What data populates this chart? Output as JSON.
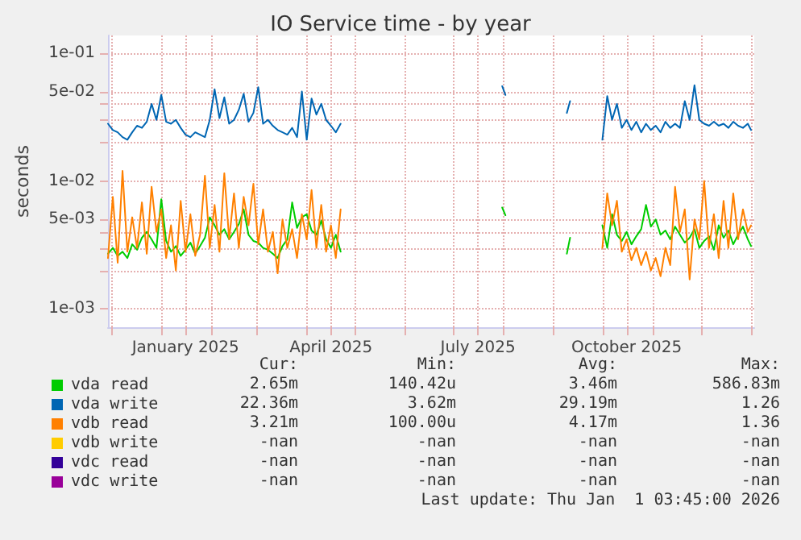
{
  "chart_data": {
    "type": "line",
    "title": "IO Service time - by year",
    "ylabel": "seconds",
    "x": [
      "2024-11-29",
      "2024-12-02",
      "2024-12-05",
      "2024-12-08",
      "2024-12-11",
      "2024-12-14",
      "2024-12-17",
      "2024-12-20",
      "2024-12-23",
      "2024-12-26",
      "2024-12-29",
      "2025-01-01",
      "2025-01-04",
      "2025-01-07",
      "2025-01-10",
      "2025-01-13",
      "2025-01-16",
      "2025-01-19",
      "2025-01-22",
      "2025-01-25",
      "2025-01-28",
      "2025-01-31",
      "2025-02-03",
      "2025-02-06",
      "2025-02-09",
      "2025-02-12",
      "2025-02-15",
      "2025-02-18",
      "2025-02-21",
      "2025-02-24",
      "2025-02-27",
      "2025-03-02",
      "2025-03-05",
      "2025-03-08",
      "2025-03-11",
      "2025-03-14",
      "2025-03-17",
      "2025-03-20",
      "2025-03-23",
      "2025-03-26",
      "2025-03-29",
      "2025-04-01",
      "2025-04-04",
      "2025-04-07",
      "2025-04-10",
      "2025-04-13",
      "2025-04-16",
      "2025-04-19",
      "2025-04-22",
      "2025-06-01",
      "2025-07-31",
      "2025-08-02",
      "2025-08-20",
      "2025-09-09",
      "2025-09-11",
      "2025-09-20",
      "2025-10-01",
      "2025-10-04",
      "2025-10-07",
      "2025-10-10",
      "2025-10-13",
      "2025-10-16",
      "2025-10-19",
      "2025-10-22",
      "2025-10-25",
      "2025-10-28",
      "2025-10-31",
      "2025-11-03",
      "2025-11-06",
      "2025-11-09",
      "2025-11-12",
      "2025-11-15",
      "2025-11-18",
      "2025-11-21",
      "2025-11-24",
      "2025-11-27",
      "2025-11-30",
      "2025-12-03",
      "2025-12-06",
      "2025-12-09",
      "2025-12-12",
      "2025-12-15",
      "2025-12-18",
      "2025-12-21",
      "2025-12-24",
      "2025-12-27",
      "2025-12-30",
      "2026-01-01"
    ],
    "series": [
      {
        "name": "vda read",
        "color": "#00cc00",
        "values": [
          0.0027,
          0.003,
          0.0026,
          0.0028,
          0.0025,
          0.0032,
          0.0029,
          0.0036,
          0.004,
          0.0035,
          0.003,
          0.0072,
          0.0034,
          0.0028,
          0.0031,
          0.0026,
          0.0029,
          0.0033,
          0.0027,
          0.0031,
          0.0036,
          0.0052,
          0.0045,
          0.0038,
          0.0042,
          0.0035,
          0.004,
          0.0046,
          0.006,
          0.0038,
          0.0034,
          0.0033,
          0.003,
          0.0029,
          0.0027,
          0.0025,
          0.0031,
          0.0035,
          0.0068,
          0.0043,
          0.0052,
          0.0055,
          0.0041,
          0.0038,
          0.0049,
          0.0035,
          0.003,
          0.0038,
          0.0028,
          null,
          0.0062,
          0.0054,
          null,
          0.0027,
          0.0036,
          null,
          0.0045,
          0.003,
          0.0055,
          0.0038,
          0.0034,
          0.004,
          0.0032,
          0.0037,
          0.0042,
          0.0065,
          0.0044,
          0.005,
          0.0038,
          0.0041,
          0.0035,
          0.0044,
          0.0038,
          0.0033,
          0.0036,
          0.0042,
          0.003,
          0.0034,
          0.0037,
          0.0029,
          0.0045,
          0.0036,
          0.0041,
          0.0032,
          0.0038,
          0.0044,
          0.0035,
          0.0031
        ]
      },
      {
        "name": "vda write",
        "color": "#0066b3",
        "values": [
          0.028,
          0.025,
          0.024,
          0.022,
          0.021,
          0.024,
          0.027,
          0.026,
          0.029,
          0.04,
          0.03,
          0.047,
          0.029,
          0.028,
          0.03,
          0.026,
          0.023,
          0.022,
          0.024,
          0.023,
          0.022,
          0.03,
          0.052,
          0.031,
          0.045,
          0.028,
          0.03,
          0.036,
          0.048,
          0.029,
          0.034,
          0.054,
          0.028,
          0.03,
          0.027,
          0.025,
          0.024,
          0.023,
          0.026,
          0.022,
          0.05,
          0.021,
          0.044,
          0.033,
          0.04,
          0.03,
          0.027,
          0.024,
          0.028,
          null,
          0.055,
          0.047,
          null,
          0.034,
          0.042,
          null,
          0.021,
          0.046,
          0.03,
          0.04,
          0.026,
          0.03,
          0.025,
          0.029,
          0.024,
          0.028,
          0.025,
          0.027,
          0.024,
          0.029,
          0.026,
          0.028,
          0.026,
          0.042,
          0.03,
          0.056,
          0.03,
          0.028,
          0.027,
          0.029,
          0.027,
          0.028,
          0.026,
          0.029,
          0.027,
          0.026,
          0.028,
          0.025
        ]
      },
      {
        "name": "vdb read",
        "color": "#ff8000",
        "values": [
          0.0025,
          0.0075,
          0.0023,
          0.012,
          0.0028,
          0.0052,
          0.003,
          0.0068,
          0.0027,
          0.009,
          0.004,
          0.006,
          0.0025,
          0.0045,
          0.002,
          0.007,
          0.0028,
          0.0055,
          0.0026,
          0.0038,
          0.011,
          0.003,
          0.0065,
          0.0028,
          0.0115,
          0.0035,
          0.008,
          0.003,
          0.0075,
          0.0045,
          0.0095,
          0.0032,
          0.006,
          0.0028,
          0.004,
          0.0019,
          0.005,
          0.003,
          0.0042,
          0.0025,
          0.0055,
          0.0035,
          0.0085,
          0.003,
          0.0065,
          0.0028,
          0.0045,
          0.0025,
          0.006,
          null,
          null,
          null,
          null,
          null,
          null,
          null,
          0.003,
          0.008,
          0.0045,
          0.007,
          0.0028,
          0.0035,
          0.0024,
          0.003,
          0.0022,
          0.0028,
          0.002,
          0.0025,
          0.0018,
          0.003,
          0.0022,
          0.009,
          0.004,
          0.006,
          0.0017,
          0.005,
          0.0035,
          0.01,
          0.003,
          0.0055,
          0.0025,
          0.007,
          0.003,
          0.008,
          0.0035,
          0.006,
          0.004,
          0.0045
        ]
      },
      {
        "name": "vdb write",
        "color": "#ffcc00",
        "values": [
          null,
          null,
          null,
          null,
          null,
          null,
          null,
          null,
          null,
          null,
          null,
          null,
          null,
          null,
          null,
          null,
          null,
          null,
          null,
          null,
          null,
          null,
          null,
          null,
          null,
          null,
          null,
          null,
          null,
          null,
          null,
          null,
          null,
          null,
          null,
          null,
          null,
          null,
          null,
          null,
          null,
          null,
          null,
          null,
          null,
          null,
          null,
          null,
          null,
          null,
          null,
          null,
          null,
          null,
          null,
          null,
          null,
          null,
          null,
          null,
          null,
          null,
          null,
          null,
          null,
          null,
          null,
          null,
          null,
          null,
          null,
          null,
          null,
          null,
          null,
          null,
          null,
          null,
          null,
          null,
          null,
          null,
          null,
          null,
          null,
          null,
          null,
          null
        ]
      },
      {
        "name": "vdc read",
        "color": "#330099",
        "values": [
          null,
          null,
          null,
          null,
          null,
          null,
          null,
          null,
          null,
          null,
          null,
          null,
          null,
          null,
          null,
          null,
          null,
          null,
          null,
          null,
          null,
          null,
          null,
          null,
          null,
          null,
          null,
          null,
          null,
          null,
          null,
          null,
          null,
          null,
          null,
          null,
          null,
          null,
          null,
          null,
          null,
          null,
          null,
          null,
          null,
          null,
          null,
          null,
          null,
          null,
          null,
          null,
          null,
          null,
          null,
          null,
          null,
          null,
          null,
          null,
          null,
          null,
          null,
          null,
          null,
          null,
          null,
          null,
          null,
          null,
          null,
          null,
          null,
          null,
          null,
          null,
          null,
          null,
          null,
          null,
          null,
          null,
          null,
          null,
          null,
          null,
          null,
          null
        ]
      },
      {
        "name": "vdc write",
        "color": "#990099",
        "values": [
          null,
          null,
          null,
          null,
          null,
          null,
          null,
          null,
          null,
          null,
          null,
          null,
          null,
          null,
          null,
          null,
          null,
          null,
          null,
          null,
          null,
          null,
          null,
          null,
          null,
          null,
          null,
          null,
          null,
          null,
          null,
          null,
          null,
          null,
          null,
          null,
          null,
          null,
          null,
          null,
          null,
          null,
          null,
          null,
          null,
          null,
          null,
          null,
          null,
          null,
          null,
          null,
          null,
          null,
          null,
          null,
          null,
          null,
          null,
          null,
          null,
          null,
          null,
          null,
          null,
          null,
          null,
          null,
          null,
          null,
          null,
          null,
          null,
          null,
          null,
          null,
          null,
          null,
          null,
          null,
          null,
          null,
          null,
          null,
          null,
          null,
          null,
          null
        ]
      }
    ],
    "xlim": [
      "2024-11-29",
      "2026-01-03"
    ],
    "xticks": [
      {
        "value": "2024-12-01",
        "label": null
      },
      {
        "value": "2025-01-01",
        "label": null
      },
      {
        "value": "2025-01-16",
        "label": "January 2025"
      },
      {
        "value": "2025-02-01",
        "label": null
      },
      {
        "value": "2025-03-01",
        "label": null
      },
      {
        "value": "2025-04-01",
        "label": null
      },
      {
        "value": "2025-04-16",
        "label": "April 2025"
      },
      {
        "value": "2025-05-01",
        "label": null
      },
      {
        "value": "2025-06-01",
        "label": null
      },
      {
        "value": "2025-07-01",
        "label": null
      },
      {
        "value": "2025-07-16",
        "label": "July 2025"
      },
      {
        "value": "2025-08-01",
        "label": null
      },
      {
        "value": "2025-09-01",
        "label": null
      },
      {
        "value": "2025-10-01",
        "label": null
      },
      {
        "value": "2025-10-16",
        "label": "October 2025"
      },
      {
        "value": "2025-11-01",
        "label": null
      },
      {
        "value": "2025-12-01",
        "label": null
      },
      {
        "value": "2026-01-01",
        "label": null
      }
    ],
    "ylim": [
      0.00072,
      0.137
    ],
    "yticks": [
      {
        "value": 0.001,
        "label": "1e-03"
      },
      {
        "value": 0.002,
        "label": null
      },
      {
        "value": 0.003,
        "label": null
      },
      {
        "value": 0.004,
        "label": null
      },
      {
        "value": 0.005,
        "label": "5e-03"
      },
      {
        "value": 0.01,
        "label": "1e-02"
      },
      {
        "value": 0.02,
        "label": null
      },
      {
        "value": 0.03,
        "label": null
      },
      {
        "value": 0.04,
        "label": null
      },
      {
        "value": 0.05,
        "label": "5e-02"
      },
      {
        "value": 0.1,
        "label": "1e-01"
      }
    ],
    "log": "y",
    "grid": true,
    "legend": "bottom",
    "marker": "none",
    "line_style": "solid",
    "annotations": [
      "Cur:",
      "Min:",
      "Avg:",
      "Max:",
      "2.65m",
      "140.42u",
      "3.46m",
      "586.83m",
      "22.36m",
      "3.62m",
      "29.19m",
      "1.26",
      "3.21m",
      "100.00u",
      "4.17m",
      "1.36",
      "-nan",
      "-nan",
      "-nan",
      "-nan",
      "-nan",
      "-nan",
      "-nan",
      "-nan",
      "-nan",
      "-nan",
      "-nan",
      "-nan",
      "Last update: Thu Jan  1 03:45:00 2026"
    ]
  }
}
